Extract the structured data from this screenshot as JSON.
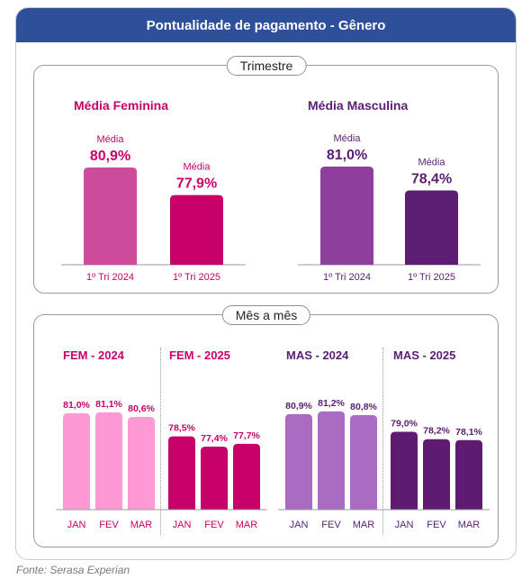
{
  "header": {
    "title": "Pontualidade de pagamento - Gênero"
  },
  "footer": {
    "source": "Fonte: Serasa Experian"
  },
  "colors": {
    "header_bg": "#2e4f99",
    "fem_avg_2024": "#cc4b9a",
    "fem_avg_2025": "#c8006a",
    "mas_avg_2024": "#8e3f9e",
    "mas_avg_2025": "#5b1e73",
    "fem_month_2024": "#ff99d6",
    "fem_month_2025": "#c8006a",
    "mas_month_2024": "#a96cc2",
    "mas_month_2025": "#5f1a72",
    "fem_text": "#c8006a",
    "mas_text": "#5b1e73"
  },
  "chart_data": [
    {
      "type": "bar",
      "section_label": "Trimestre",
      "title": "Média Feminina",
      "categories": [
        "1º Tri 2024",
        "1º Tri 2025"
      ],
      "bar_caption": "Média",
      "values": [
        80.9,
        77.9
      ],
      "value_labels": [
        "80,9%",
        "77,9%"
      ],
      "colors": [
        "#cc4b9a",
        "#c8006a"
      ]
    },
    {
      "type": "bar",
      "section_label": "Trimestre",
      "title": "Média Masculina",
      "categories": [
        "1º Tri 2024",
        "1º Tri 2025"
      ],
      "bar_caption": "Média",
      "values": [
        81.0,
        78.4
      ],
      "value_labels": [
        "81,0%",
        "78,4%"
      ],
      "colors": [
        "#8e3f9e",
        "#5b1e73"
      ]
    },
    {
      "type": "bar",
      "section_label": "Mês a mês",
      "title": "FEM - 2024",
      "categories": [
        "JAN",
        "FEV",
        "MAR"
      ],
      "values": [
        81.0,
        81.1,
        80.6
      ],
      "value_labels": [
        "81,0%",
        "81,1%",
        "80,6%"
      ],
      "color": "#ff99d6"
    },
    {
      "type": "bar",
      "section_label": "Mês a mês",
      "title": "FEM - 2025",
      "categories": [
        "JAN",
        "FEV",
        "MAR"
      ],
      "values": [
        78.5,
        77.4,
        77.7
      ],
      "value_labels": [
        "78,5%",
        "77,4%",
        "77,7%"
      ],
      "color": "#c8006a"
    },
    {
      "type": "bar",
      "section_label": "Mês a mês",
      "title": "MAS - 2024",
      "categories": [
        "JAN",
        "FEV",
        "MAR"
      ],
      "values": [
        80.9,
        81.2,
        80.8
      ],
      "value_labels": [
        "80,9%",
        "81,2%",
        "80,8%"
      ],
      "color": "#a96cc2"
    },
    {
      "type": "bar",
      "section_label": "Mês a mês",
      "title": "MAS - 2025",
      "categories": [
        "JAN",
        "FEV",
        "MAR"
      ],
      "values": [
        79.0,
        78.2,
        78.1
      ],
      "value_labels": [
        "79,0%",
        "78,2%",
        "78,1%"
      ],
      "color": "#5f1a72"
    }
  ]
}
